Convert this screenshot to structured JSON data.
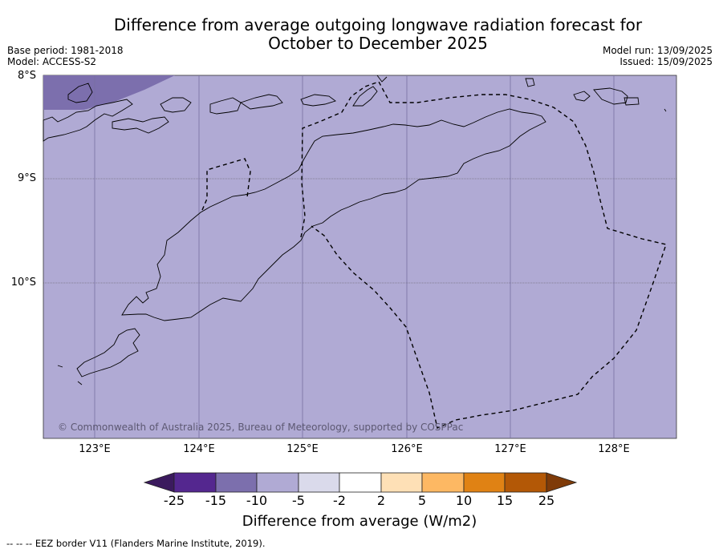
{
  "title_line1": "Difference from average outgoing longwave radiation forecast for",
  "title_line2": "October to December 2025",
  "base_period": "Base period: 1981-2018",
  "model": "Model: ACCESS-S2",
  "model_run": "Model run: 13/09/2025",
  "issued": "Issued: 15/09/2025",
  "lat_labels": [
    "8°S",
    "9°S",
    "10°S"
  ],
  "lon_labels": [
    "123°E",
    "124°E",
    "125°E",
    "126°E",
    "127°E",
    "128°E"
  ],
  "copyright": "© Commonwealth of Australia 2025, Bureau of Meteorology, supported by COSPPac",
  "colorbar": {
    "ticks": [
      "-25",
      "-15",
      "-10",
      "-5",
      "-2",
      "2",
      "5",
      "10",
      "15",
      "25"
    ],
    "colors": [
      "#3b1a5e",
      "#54278f",
      "#7c6fad",
      "#b0aad4",
      "#dadaeb",
      "#ffffff",
      "#fee0b6",
      "#fdb863",
      "#e08214",
      "#b35806",
      "#7f3b08"
    ],
    "label": "Difference from average (W/m2)"
  },
  "legend": {
    "eez": "--  --  -- EEZ border V11 (Flanders Marine Institute, 2019)."
  },
  "map": {
    "background_color": "#b0aad4",
    "strong_anomaly_color": "#7c6fad"
  }
}
